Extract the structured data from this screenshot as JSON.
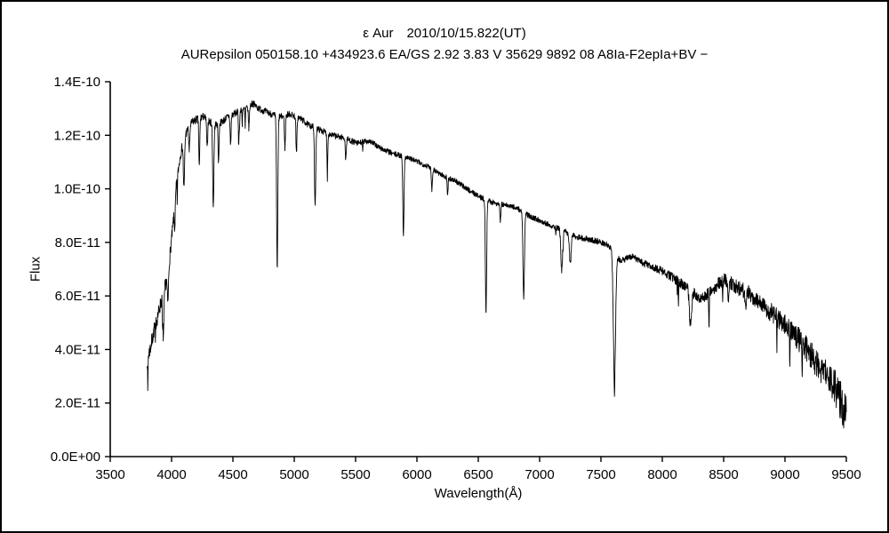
{
  "header": {
    "title": "ε Aur　2010/10/15.822(UT)",
    "subtitle": "AURepsilon 050158.10 +434923.6 EA/GS 2.92 3.83 V 35629 9892 08 A8Ia-F2epIa+BV −"
  },
  "chart_data": {
    "type": "line",
    "title": "ε Aur　2010/10/15.822(UT)",
    "subtitle": "AURepsilon 050158.10 +434923.6 EA/GS 2.92 3.83 V 35629 9892 08 A8Ia-F2epIa+BV −",
    "xlabel": "Wavelength(Å)",
    "ylabel": "Flux",
    "grid": false,
    "legend": false,
    "line_color": "#000000",
    "axis_color": "#000000",
    "background_color": "#ffffff",
    "xlim": [
      3500,
      9500
    ],
    "ylim": [
      0,
      14
    ],
    "flux_scale": 1e-11,
    "x_tick_values": [
      3500,
      4000,
      4500,
      5000,
      5500,
      6000,
      6500,
      7000,
      7500,
      8000,
      8500,
      9000,
      9500
    ],
    "x_tick_labels": [
      "3500",
      "4000",
      "4500",
      "5000",
      "5500",
      "6000",
      "6500",
      "7000",
      "7500",
      "8000",
      "8500",
      "9000",
      "9500"
    ],
    "y_tick_values": [
      0,
      2,
      4,
      6,
      8,
      10,
      12,
      14
    ],
    "y_tick_labels": [
      "0.0E+00",
      "2.0E-11",
      "4.0E-11",
      "6.0E-11",
      "8.0E-11",
      "1.0E-10",
      "1.2E-10",
      "1.4E-10"
    ],
    "continuum": [
      [
        3800,
        3.6
      ],
      [
        3830,
        4.1
      ],
      [
        3860,
        4.8
      ],
      [
        3890,
        5.3
      ],
      [
        3920,
        5.9
      ],
      [
        3950,
        6.4
      ],
      [
        3980,
        7.2
      ],
      [
        4010,
        8.6
      ],
      [
        4040,
        10.2
      ],
      [
        4070,
        11.2
      ],
      [
        4100,
        11.9
      ],
      [
        4130,
        12.2
      ],
      [
        4170,
        12.5
      ],
      [
        4210,
        12.6
      ],
      [
        4260,
        12.7
      ],
      [
        4310,
        12.5
      ],
      [
        4360,
        12.4
      ],
      [
        4410,
        12.5
      ],
      [
        4460,
        12.7
      ],
      [
        4510,
        12.8
      ],
      [
        4560,
        12.9
      ],
      [
        4610,
        13.0
      ],
      [
        4660,
        13.2
      ],
      [
        4710,
        13.0
      ],
      [
        4760,
        12.9
      ],
      [
        4810,
        12.8
      ],
      [
        4860,
        12.7
      ],
      [
        4910,
        12.7
      ],
      [
        4960,
        12.8
      ],
      [
        5010,
        12.7
      ],
      [
        5060,
        12.6
      ],
      [
        5110,
        12.4
      ],
      [
        5160,
        12.3
      ],
      [
        5210,
        12.2
      ],
      [
        5310,
        12.0
      ],
      [
        5410,
        11.9
      ],
      [
        5510,
        11.7
      ],
      [
        5610,
        11.8
      ],
      [
        5710,
        11.5
      ],
      [
        5810,
        11.3
      ],
      [
        5910,
        11.2
      ],
      [
        6010,
        11.0
      ],
      [
        6110,
        10.8
      ],
      [
        6210,
        10.5
      ],
      [
        6310,
        10.3
      ],
      [
        6410,
        10.0
      ],
      [
        6510,
        9.7
      ],
      [
        6610,
        9.5
      ],
      [
        6710,
        9.4
      ],
      [
        6810,
        9.3
      ],
      [
        6910,
        9.0
      ],
      [
        7010,
        8.8
      ],
      [
        7110,
        8.6
      ],
      [
        7210,
        8.4
      ],
      [
        7310,
        8.2
      ],
      [
        7410,
        8.1
      ],
      [
        7510,
        8.0
      ],
      [
        7560,
        7.9
      ],
      [
        7660,
        7.3
      ],
      [
        7710,
        7.4
      ],
      [
        7760,
        7.5
      ],
      [
        7810,
        7.3
      ],
      [
        7910,
        7.1
      ],
      [
        8010,
        6.9
      ],
      [
        8110,
        6.6
      ],
      [
        8210,
        6.3
      ],
      [
        8310,
        5.9
      ],
      [
        8410,
        6.2
      ],
      [
        8460,
        6.5
      ],
      [
        8510,
        6.6
      ],
      [
        8560,
        6.5
      ],
      [
        8610,
        6.3
      ],
      [
        8710,
        6.1
      ],
      [
        8810,
        5.7
      ],
      [
        8910,
        5.3
      ],
      [
        9010,
        4.9
      ],
      [
        9110,
        4.4
      ],
      [
        9210,
        3.8
      ],
      [
        9310,
        3.2
      ],
      [
        9410,
        2.6
      ],
      [
        9500,
        1.5
      ]
    ],
    "absorption_lines": [
      [
        3933,
        1.6,
        5
      ],
      [
        3970,
        1.2,
        5
      ],
      [
        4026,
        0.9,
        4
      ],
      [
        4101,
        1.9,
        5
      ],
      [
        4144,
        0.9,
        4
      ],
      [
        4226,
        1.8,
        4
      ],
      [
        4290,
        1.1,
        4
      ],
      [
        4340,
        3.1,
        5
      ],
      [
        4383,
        1.4,
        4
      ],
      [
        4481,
        1.1,
        4
      ],
      [
        4550,
        0.9,
        4
      ],
      [
        4630,
        0.8,
        4
      ],
      [
        4861,
        5.7,
        5
      ],
      [
        4924,
        1.2,
        4
      ],
      [
        5018,
        1.4,
        4
      ],
      [
        5170,
        3.0,
        5
      ],
      [
        5270,
        1.0,
        4
      ],
      [
        5420,
        0.8,
        4
      ],
      [
        5890,
        2.9,
        5
      ],
      [
        6122,
        0.8,
        4
      ],
      [
        6250,
        0.6,
        4
      ],
      [
        6563,
        4.3,
        5
      ],
      [
        6680,
        0.6,
        4
      ],
      [
        6870,
        3.2,
        6
      ],
      [
        7180,
        1.5,
        7
      ],
      [
        7250,
        1.1,
        7
      ],
      [
        7610,
        4.8,
        9
      ],
      [
        8230,
        1.3,
        9
      ],
      [
        8540,
        0.7,
        5
      ],
      [
        8680,
        0.6,
        5
      ]
    ],
    "noise_profile": [
      [
        3800,
        0.3
      ],
      [
        3950,
        0.28
      ],
      [
        4050,
        0.18
      ],
      [
        4300,
        0.14
      ],
      [
        5000,
        0.12
      ],
      [
        6000,
        0.1
      ],
      [
        7000,
        0.1
      ],
      [
        7800,
        0.12
      ],
      [
        8100,
        0.18
      ],
      [
        8400,
        0.22
      ],
      [
        8700,
        0.3
      ],
      [
        9000,
        0.4
      ],
      [
        9200,
        0.5
      ],
      [
        9350,
        0.6
      ],
      [
        9500,
        0.85
      ]
    ],
    "sampling": {
      "start": 3800,
      "end": 9500,
      "step": 2,
      "seed": 7
    }
  }
}
